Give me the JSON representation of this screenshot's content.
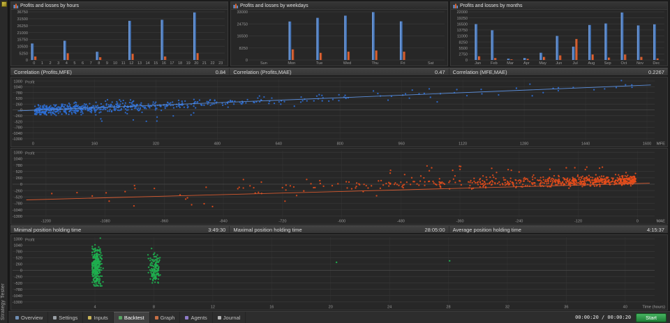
{
  "app": {
    "side_label": "Strategy Tester"
  },
  "correlation_row": [
    {
      "label": "Correlation (Profits,MFE)",
      "value": "0.84"
    },
    {
      "label": "Correlation (Profits,MAE)",
      "value": "0.47"
    },
    {
      "label": "Correlation (MFE,MAE)",
      "value": "0.2267"
    }
  ],
  "holding_row": [
    {
      "label": "Minimal position holding time",
      "value": "3:49:30"
    },
    {
      "label": "Maximal position holding time",
      "value": "28:05:00"
    },
    {
      "label": "Average position holding time",
      "value": "4:15:37"
    }
  ],
  "tabs": {
    "active_index": 3,
    "items": [
      {
        "label": "Overview",
        "icon": "overview-icon",
        "icon_color": "#6f8fb5"
      },
      {
        "label": "Settings",
        "icon": "settings-icon",
        "icon_color": "#9aa0a6"
      },
      {
        "label": "Inputs",
        "icon": "inputs-icon",
        "icon_color": "#c9b458"
      },
      {
        "label": "Backtest",
        "icon": "backtest-icon",
        "icon_color": "#57a663"
      },
      {
        "label": "Graph",
        "icon": "graph-icon",
        "icon_color": "#c96f45"
      },
      {
        "label": "Agents",
        "icon": "agents-icon",
        "icon_color": "#8f7bc9"
      },
      {
        "label": "Journal",
        "icon": "journal-icon",
        "icon_color": "#b5b5b5"
      }
    ]
  },
  "controls": {
    "elapsed": "00:00:20 / 00:00:20",
    "start_label": "Start"
  },
  "chart_data": {
    "bars": [
      {
        "type": "bar",
        "title": "Profits and losses by hours",
        "categories": [
          "0",
          "1",
          "2",
          "3",
          "4",
          "5",
          "6",
          "7",
          "8",
          "9",
          "10",
          "11",
          "12",
          "13",
          "14",
          "15",
          "16",
          "17",
          "18",
          "19",
          "20",
          "21",
          "22",
          "23"
        ],
        "yticks": [
          0,
          5250,
          10500,
          15750,
          21000,
          26250,
          31500,
          36750
        ],
        "series": [
          {
            "name": "Profits",
            "color": "#7aa7e8",
            "color2": "#33609f",
            "values": [
              12600,
              0,
              0,
              0,
              14700,
              0,
              0,
              0,
              6300,
              0,
              0,
              0,
              29900,
              0,
              0,
              0,
              30700,
              0,
              0,
              0,
              36300,
              0,
              0,
              0
            ]
          },
          {
            "name": "Losses",
            "color": "#f08050",
            "color2": "#b03a10",
            "values": [
              2700,
              0,
              0,
              0,
              5100,
              0,
              0,
              0,
              2100,
              0,
              0,
              0,
              4700,
              0,
              0,
              0,
              2700,
              0,
              0,
              0,
              5200,
              0,
              0,
              0
            ]
          }
        ]
      },
      {
        "type": "bar",
        "title": "Profits and losses by weekdays",
        "categories": [
          "Sun",
          "Mon",
          "Tue",
          "Wed",
          "Thu",
          "Fri",
          "Sat"
        ],
        "yticks": [
          0,
          8250,
          16500,
          24750,
          33000
        ],
        "series": [
          {
            "name": "Profits",
            "color": "#7aa7e8",
            "color2": "#33609f",
            "values": [
              0,
              26400,
              28900,
              30400,
              32800,
              26500,
              0
            ]
          },
          {
            "name": "Losses",
            "color": "#f08050",
            "color2": "#b03a10",
            "values": [
              0,
              7300,
              4900,
              5700,
              6500,
              5700,
              0
            ]
          }
        ]
      },
      {
        "type": "bar",
        "title": "Profits and losses by months",
        "categories": [
          "Jan",
          "Feb",
          "Mar",
          "Apr",
          "May",
          "Jun",
          "Jul",
          "Aug",
          "Sep",
          "Oct",
          "Nov",
          "Dec"
        ],
        "yticks": [
          0,
          2750,
          5500,
          8250,
          11000,
          13750,
          16500,
          19250,
          22000
        ],
        "series": [
          {
            "name": "Profits",
            "color": "#7aa7e8",
            "color2": "#33609f",
            "values": [
              16400,
              13600,
              600,
              900,
              3300,
              11000,
              6100,
              16000,
              16700,
              21700,
              15800,
              16300
            ]
          },
          {
            "name": "Losses",
            "color": "#f08050",
            "color2": "#b03a10",
            "values": [
              1700,
              900,
              300,
              500,
              1400,
              2100,
              9600,
              2500,
              1100,
              2500,
              1400,
              700
            ]
          }
        ]
      }
    ],
    "scatters": [
      {
        "type": "scatter",
        "name": "profit-vs-mfe",
        "profit_label": "Profit",
        "xlabel": "MFE",
        "color": "#2e6fd6",
        "point_radius": 1.15,
        "xlim": [
          -50,
          1620
        ],
        "ylim": [
          -1365,
          1365
        ],
        "xticks": [
          0,
          160,
          320,
          480,
          640,
          800,
          960,
          1120,
          1280,
          1440,
          1600
        ],
        "yticks": [
          1300,
          1040,
          780,
          520,
          260,
          0,
          -260,
          -520,
          -780,
          -1040,
          -1300
        ],
        "seed": 11,
        "clusters": [
          {
            "count": 560,
            "x": {
              "dist": "exp",
              "scale": 210,
              "min": 4,
              "max": 1580
            },
            "y": {
              "slope": 0.72,
              "intercept": -25,
              "noise": 112
            }
          },
          {
            "count": 40,
            "x": {
              "dist": "uniform",
              "min": 500,
              "max": 1580
            },
            "y": {
              "slope": 0.72,
              "intercept": -25,
              "noise": 150
            }
          },
          {
            "count": 14,
            "x": {
              "dist": "uniform",
              "min": 20,
              "max": 420
            },
            "y": {
              "slope": 0.1,
              "intercept": -380,
              "noise": 150
            }
          }
        ],
        "trend": {
          "x1": -40,
          "y1": -45,
          "x2": 1610,
          "y2": 1120,
          "color": "#5c8fdb",
          "width": 0.9
        }
      },
      {
        "type": "scatter",
        "name": "profit-vs-mae",
        "profit_label": "Profit",
        "xlabel": "MAE",
        "color": "#e54d1b",
        "point_radius": 1.15,
        "xlim": [
          -1265,
          35
        ],
        "ylim": [
          -1365,
          1365
        ],
        "xticks": [
          -1200,
          -1080,
          -960,
          -840,
          -720,
          -600,
          -480,
          -360,
          -240,
          -120,
          0
        ],
        "yticks": [
          1300,
          1040,
          780,
          520,
          260,
          0,
          -260,
          -520,
          -780,
          -1040,
          -1300
        ],
        "seed": 23,
        "clusters": [
          {
            "count": 640,
            "x": {
              "dist": "exp",
              "scale": 175,
              "min": 3,
              "max": 1190,
              "sign": -1
            },
            "y": {
              "slope": 0.38,
              "intercept": 165,
              "noise": 105
            }
          },
          {
            "count": 26,
            "x": {
              "dist": "uniform",
              "min": -1160,
              "max": -420
            },
            "y": {
              "slope": 0.55,
              "intercept": 60,
              "noise": 240
            }
          },
          {
            "count": 28,
            "x": {
              "dist": "uniform",
              "min": -520,
              "max": -60
            },
            "y": {
              "dist": "uniform",
              "min": 260,
              "max": 780
            }
          }
        ],
        "trend": {
          "x1": -1240,
          "y1": -640,
          "x2": 25,
          "y2": 40,
          "color": "#d65a30",
          "width": 0.9
        }
      },
      {
        "type": "scatter",
        "name": "profit-vs-holding-time",
        "profit_label": "Profit",
        "xlabel": "Time (hours)",
        "color": "#1fae4f",
        "point_radius": 1.2,
        "xlim": [
          -1.5,
          42
        ],
        "ylim": [
          -1365,
          1365
        ],
        "xticks": [
          4,
          8,
          12,
          16,
          20,
          24,
          28,
          32,
          36,
          40
        ],
        "yticks": [
          1300,
          1040,
          780,
          520,
          260,
          0,
          -260,
          -520,
          -780,
          -1040,
          -1300
        ],
        "seed": 5,
        "clusters": [
          {
            "count": 290,
            "x": {
              "dist": "gauss",
              "mean": 4.1,
              "sd": 0.18,
              "min": 3.82,
              "max": 4.8
            },
            "y": {
              "dist": "gauss",
              "mean": 180,
              "sd": 430,
              "min": -640,
              "max": 1330
            }
          },
          {
            "count": 130,
            "x": {
              "dist": "gauss",
              "mean": 8.05,
              "sd": 0.18,
              "min": 7.6,
              "max": 8.7
            },
            "y": {
              "dist": "gauss",
              "mean": 90,
              "sd": 300,
              "min": -520,
              "max": 900
            }
          }
        ],
        "points": [
          [
            20.4,
            330
          ],
          [
            28.08,
            390
          ]
        ]
      }
    ]
  }
}
